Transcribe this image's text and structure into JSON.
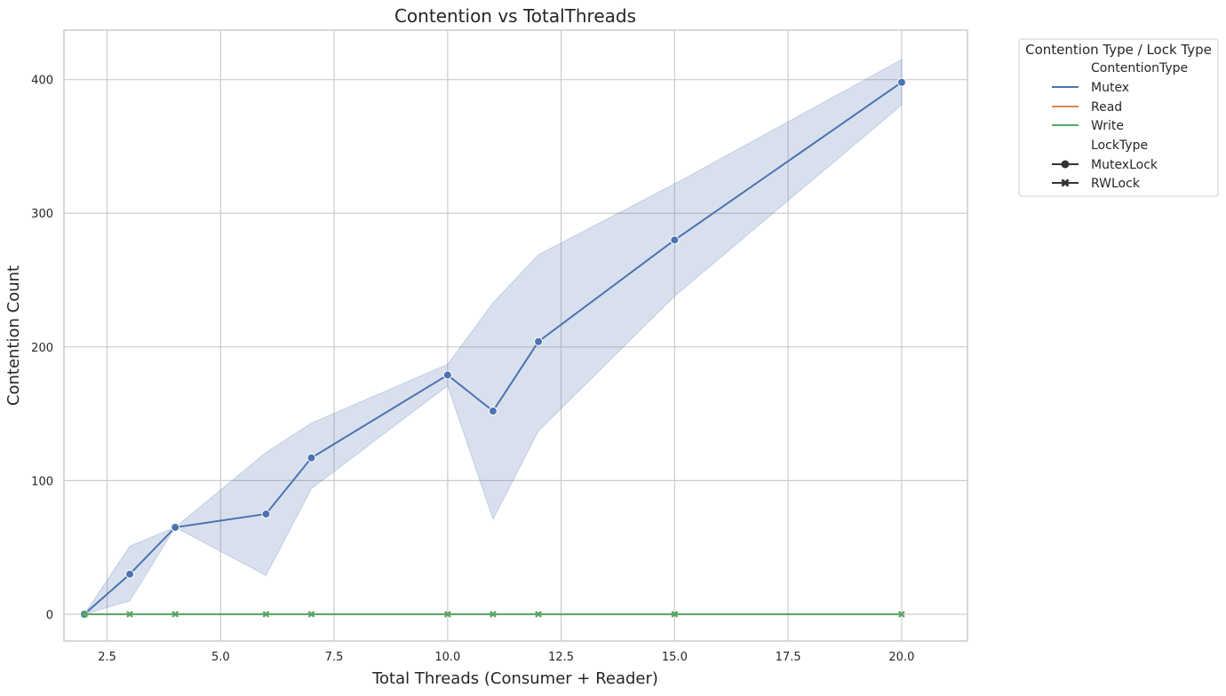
{
  "chart_data": {
    "type": "line",
    "title": "Contention vs TotalThreads",
    "xlabel": "Total Threads (Consumer + Reader)",
    "ylabel": "Contention Count",
    "xlim": [
      1.55,
      21.45
    ],
    "ylim": [
      -20,
      437
    ],
    "x_ticks": [
      2.5,
      5.0,
      7.5,
      10.0,
      12.5,
      15.0,
      17.5,
      20.0
    ],
    "x_tick_labels": [
      "2.5",
      "5.0",
      "7.5",
      "10.0",
      "12.5",
      "15.0",
      "17.5",
      "20.0"
    ],
    "y_ticks": [
      0,
      100,
      200,
      300,
      400
    ],
    "y_tick_labels": [
      "0",
      "100",
      "200",
      "300",
      "400"
    ],
    "grid": true,
    "legend_position": "outside-right",
    "legend": {
      "title": "Contention Type / Lock Type",
      "hue_title": "ContentionType",
      "hue_entries": [
        {
          "label": "Mutex",
          "color": "#4c72b0"
        },
        {
          "label": "Read",
          "color": "#dd8452"
        },
        {
          "label": "Write",
          "color": "#55a868"
        }
      ],
      "style_title": "LockType",
      "style_entries": [
        {
          "label": "MutexLock",
          "marker": "circle"
        },
        {
          "label": "RWLock",
          "marker": "x"
        }
      ]
    },
    "series": [
      {
        "name": "Mutex",
        "lock_type": "MutexLock",
        "color": "#4c72b0",
        "marker": "circle",
        "x": [
          2,
          3,
          4,
          6,
          7,
          10,
          11,
          12,
          15,
          20
        ],
        "y": [
          0,
          30,
          65,
          75,
          117,
          179,
          152,
          204,
          280,
          398
        ],
        "ci_lower": [
          0,
          10,
          65,
          29,
          94,
          171,
          71,
          137,
          238,
          381
        ],
        "ci_upper": [
          0,
          51,
          65,
          121,
          143,
          187,
          233,
          269,
          322,
          415
        ]
      },
      {
        "name": "Read",
        "lock_type": "RWLock",
        "color": "#dd8452",
        "marker": "x",
        "x": [
          2,
          3,
          4,
          6,
          7,
          10,
          11,
          12,
          15,
          20
        ],
        "y": [
          0,
          0,
          0,
          0,
          0,
          0,
          0,
          0,
          0,
          0
        ]
      },
      {
        "name": "Write",
        "lock_type": "RWLock",
        "color": "#55a868",
        "marker": "x",
        "x": [
          2,
          3,
          4,
          6,
          7,
          10,
          11,
          12,
          15,
          20
        ],
        "y": [
          0,
          0,
          0,
          0,
          0,
          0,
          0,
          0,
          0,
          0
        ]
      }
    ]
  }
}
